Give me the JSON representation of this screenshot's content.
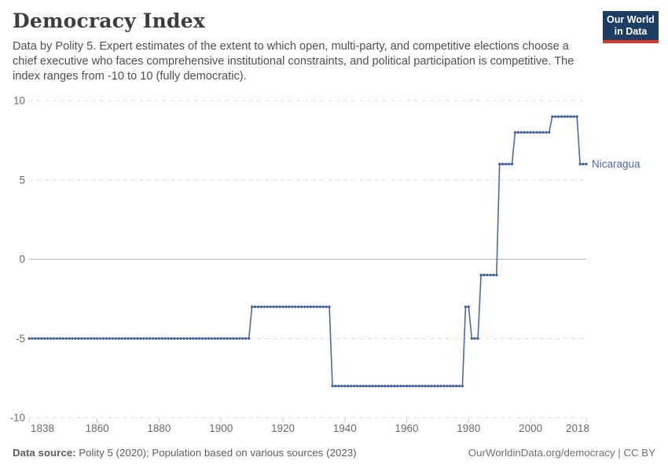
{
  "header": {
    "title": "Democracy Index",
    "logo": {
      "line1": "Our World",
      "line2": "in Data",
      "bg_color": "#1d3d63",
      "stripe_color": "#d8352b"
    }
  },
  "subtitle": "Data by Polity 5. Expert estimates of the extent to which open, multi-party, and competitive elections choose a chief executive who faces comprehensive institutional constraints, and political participation is competitive. The index ranges from -10 to 10 (fully democratic).",
  "chart_data": {
    "type": "line",
    "title": "Democracy Index",
    "xlabel": "",
    "ylabel": "",
    "xlim": [
      1838,
      2018
    ],
    "ylim": [
      -10,
      10
    ],
    "x_ticks": [
      1838,
      1860,
      1880,
      1900,
      1920,
      1940,
      1960,
      1980,
      2000,
      2018
    ],
    "y_ticks": [
      -10,
      -5,
      0,
      5,
      10
    ],
    "grid": "horizontal dashed gridlines, solid line at zero",
    "legend_position": "line-end label",
    "marker": "dot at every yearly observation",
    "series": [
      {
        "name": "Nicaragua",
        "color": "#4c6ba6",
        "marker_color": "#3c5d9d",
        "steps": [
          {
            "from": 1838,
            "to": 1909,
            "value": -5
          },
          {
            "from": 1910,
            "to": 1935,
            "value": -3
          },
          {
            "from": 1936,
            "to": 1978,
            "value": -8
          },
          {
            "from": 1979,
            "to": 1980,
            "value": -3
          },
          {
            "from": 1981,
            "to": 1983,
            "value": -5
          },
          {
            "from": 1984,
            "to": 1989,
            "value": -1
          },
          {
            "from": 1990,
            "to": 1994,
            "value": 6
          },
          {
            "from": 1995,
            "to": 2006,
            "value": 8
          },
          {
            "from": 2007,
            "to": 2015,
            "value": 9
          },
          {
            "from": 2016,
            "to": 2018,
            "value": 6
          }
        ]
      }
    ]
  },
  "footer": {
    "source_label": "Data source:",
    "source_text": " Polity 5 (2020); Population based on various sources (2023)",
    "credit": "OurWorldinData.org/democracy | CC BY"
  }
}
